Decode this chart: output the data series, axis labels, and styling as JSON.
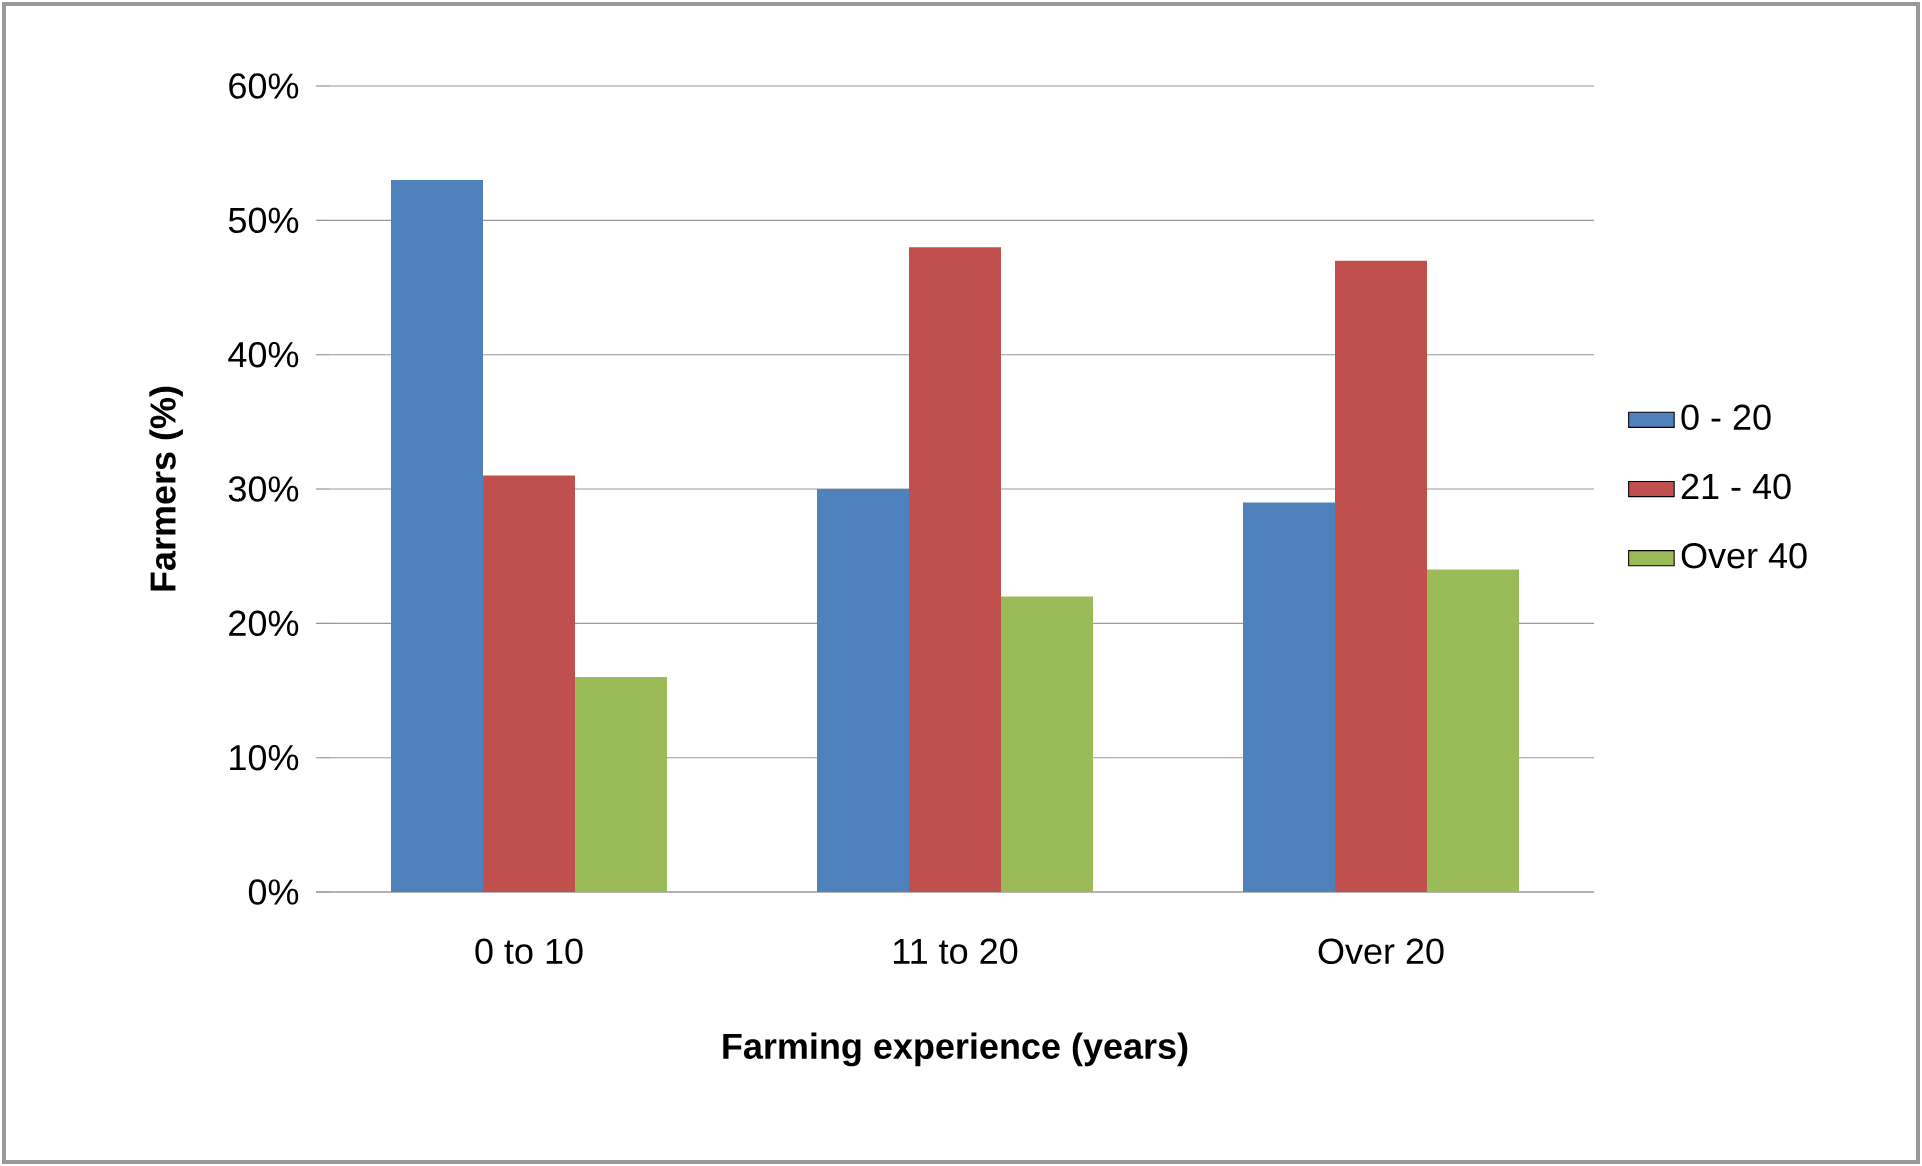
{
  "chart_data": {
    "type": "bar",
    "xlabel": "Farming experience (years)",
    "ylabel": "Farmers (%)",
    "categories": [
      "0 to 10",
      "11 to 20",
      "Over 20"
    ],
    "series": [
      {
        "name": "0 - 20",
        "color": "#4f81bd",
        "values": [
          53,
          30,
          29
        ]
      },
      {
        "name": "21 - 40",
        "color": "#c0504d",
        "values": [
          31,
          48,
          47
        ]
      },
      {
        "name": "Over 40",
        "color": "#9bbb59",
        "values": [
          16,
          22,
          24
        ]
      }
    ],
    "ylim": [
      0,
      60
    ],
    "yticks": [
      {
        "value": 0,
        "label": "0%"
      },
      {
        "value": 10,
        "label": "10%"
      },
      {
        "value": 20,
        "label": "20%"
      },
      {
        "value": 30,
        "label": "30%"
      },
      {
        "value": 40,
        "label": "40%"
      },
      {
        "value": 50,
        "label": "50%"
      },
      {
        "value": 60,
        "label": "60%"
      }
    ],
    "grid": "y",
    "legend": "right"
  }
}
